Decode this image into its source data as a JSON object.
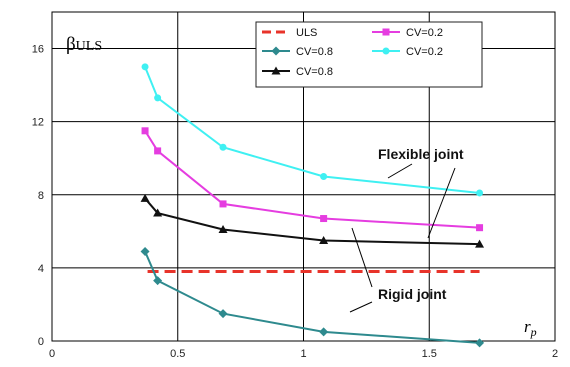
{
  "chart_data": {
    "type": "line",
    "title": "",
    "xlabel": "r",
    "xlabel_sub": "p",
    "ylabel": "β",
    "ylabel_sub": "ULS",
    "xlim": [
      0,
      2
    ],
    "ylim": [
      0,
      18
    ],
    "x_ticks": [
      0,
      0.5,
      1,
      1.5,
      2
    ],
    "x_tick_labels": [
      "0",
      "0.5",
      "1",
      "1.5",
      "2"
    ],
    "y_ticks": [
      0,
      4,
      8,
      12,
      16
    ],
    "y_tick_labels": [
      "0",
      "4",
      "8",
      "12",
      "16"
    ],
    "grid": true,
    "legend_position": "top-right",
    "series": [
      {
        "name": "ULS",
        "color": "#e8332a",
        "style": "dashed",
        "marker": "none",
        "x": [
          0.38,
          1.7
        ],
        "y": [
          3.8,
          3.8
        ]
      },
      {
        "name": "CV=0.2",
        "color": "#e53de0",
        "style": "solid",
        "marker": "square",
        "x": [
          0.37,
          0.42,
          0.68,
          1.08,
          1.7
        ],
        "y": [
          11.5,
          10.4,
          7.5,
          6.7,
          6.2
        ]
      },
      {
        "name": "CV=0.8",
        "color": "#2e8a8e",
        "style": "solid",
        "marker": "diamond",
        "x": [
          0.37,
          0.42,
          0.68,
          1.08,
          1.7
        ],
        "y": [
          4.9,
          3.3,
          1.5,
          0.5,
          -0.1
        ]
      },
      {
        "name": "CV=0.2",
        "color": "#3ff0f2",
        "style": "solid",
        "marker": "circle",
        "x": [
          0.37,
          0.42,
          0.68,
          1.08,
          1.7
        ],
        "y": [
          15.0,
          13.3,
          10.6,
          9.0,
          8.1
        ]
      },
      {
        "name": "CV=0.8",
        "color": "#111111",
        "style": "solid",
        "marker": "triangle",
        "x": [
          0.37,
          0.42,
          0.68,
          1.08,
          1.7
        ],
        "y": [
          7.8,
          7.0,
          6.1,
          5.5,
          5.3
        ]
      }
    ],
    "annotations": [
      {
        "text": "Flexible joint"
      },
      {
        "text": "Rigid joint"
      }
    ]
  }
}
